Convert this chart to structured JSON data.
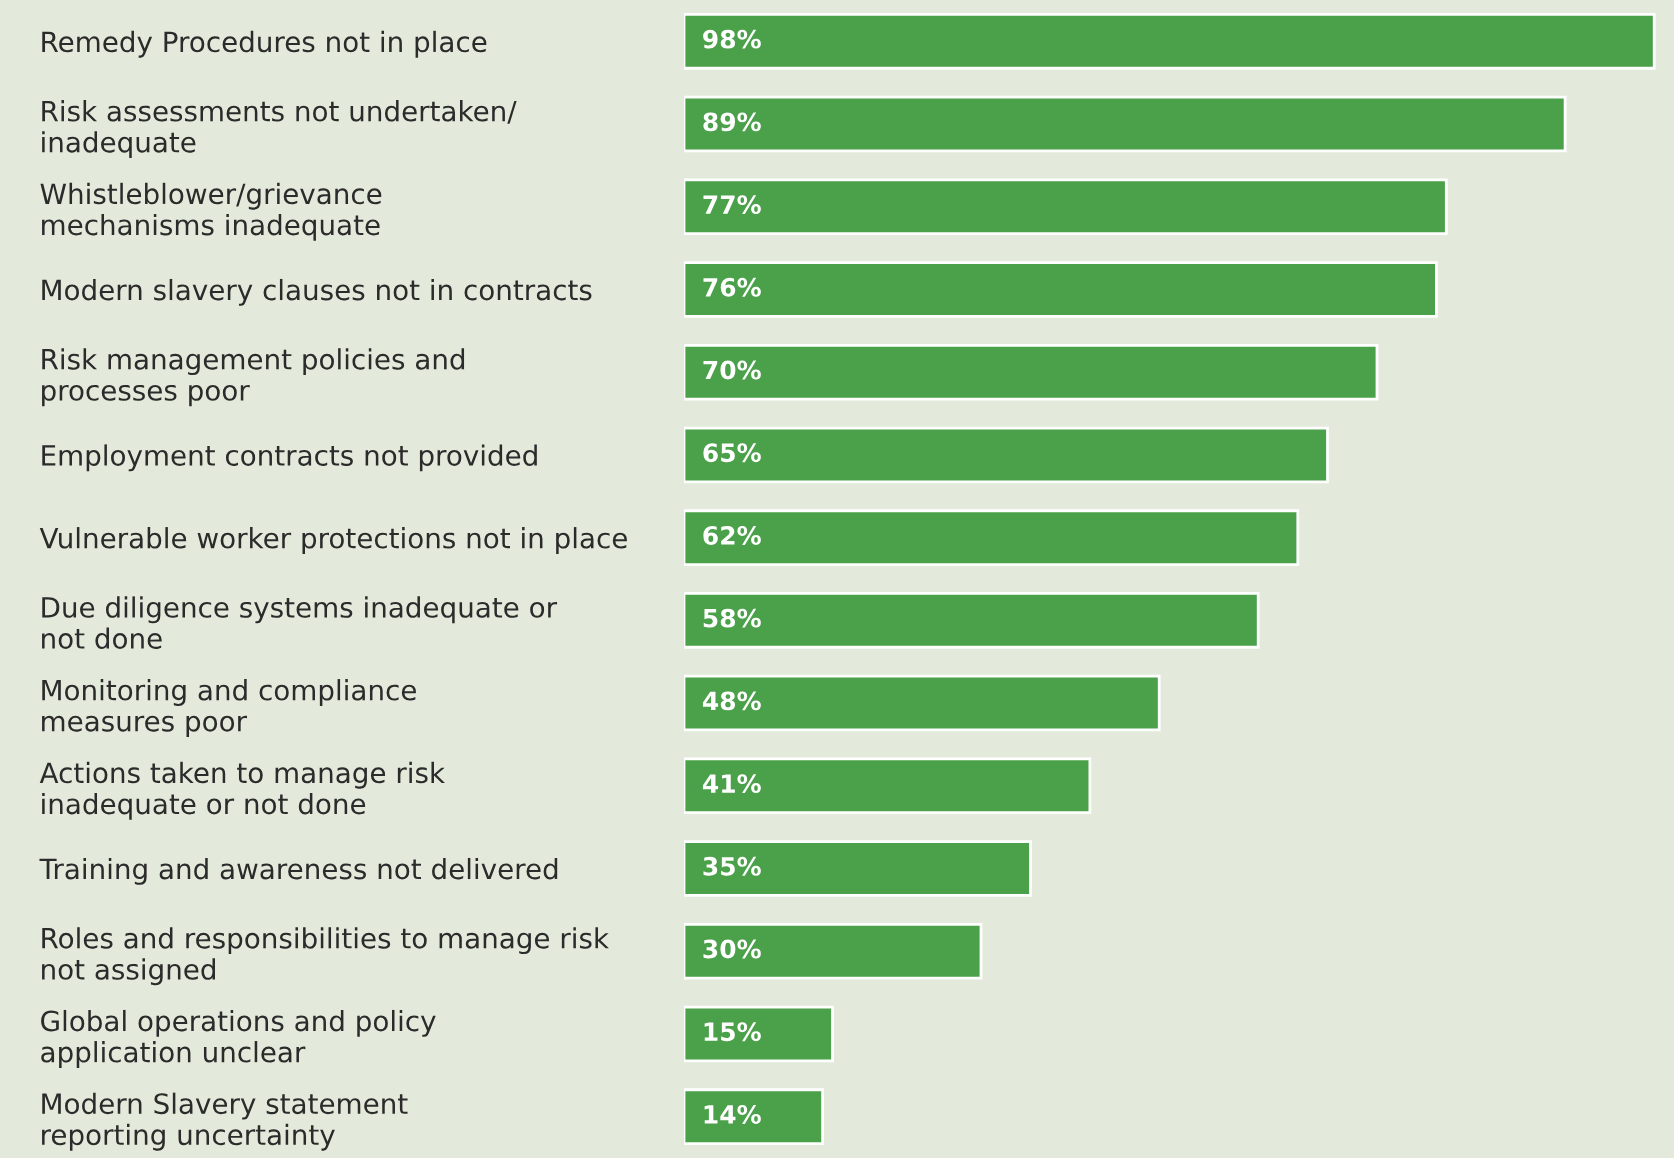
{
  "chart_data": {
    "type": "bar",
    "orientation": "horizontal",
    "categories": [
      "Remedy Procedures not in place",
      "Risk assessments not undertaken/\ninadequate",
      "Whistleblower/grievance\nmechanisms inadequate",
      "Modern slavery clauses not in contracts",
      "Risk management policies and\nprocesses poor",
      "Employment contracts not provided",
      "Vulnerable worker protections not in place",
      "Due diligence systems inadequate or\nnot done",
      "Monitoring and compliance\nmeasures poor",
      "Actions taken to manage risk\ninadequate or not done",
      "Training and awareness not delivered",
      "Roles and responsibilities to manage risk\nnot assigned",
      "Global operations and policy\napplication unclear",
      "Modern Slavery statement\nreporting uncertainty"
    ],
    "values": [
      98,
      89,
      77,
      76,
      70,
      65,
      62,
      58,
      48,
      41,
      35,
      30,
      15,
      14
    ],
    "value_labels": [
      "98%",
      "89%",
      "77%",
      "76%",
      "70%",
      "65%",
      "62%",
      "58%",
      "48%",
      "41%",
      "35%",
      "30%",
      "15%",
      "14%"
    ],
    "color": "#4aa14a",
    "xlim": [
      0,
      100
    ],
    "tick_labels": "y",
    "grid": false,
    "legend": false
  }
}
